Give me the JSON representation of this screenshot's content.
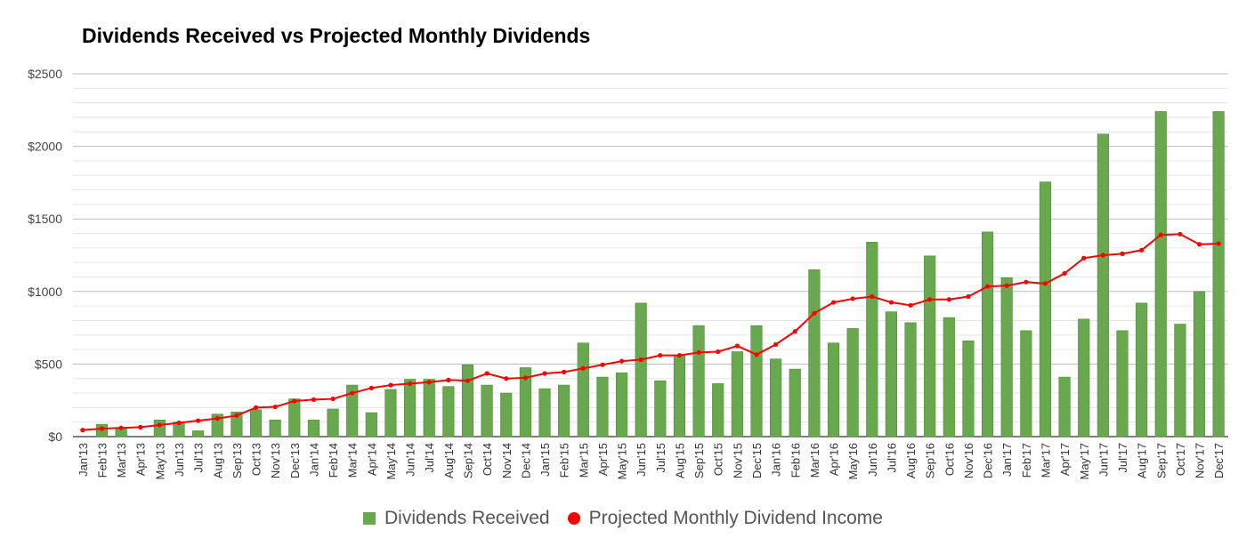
{
  "chart_data": {
    "type": "bar",
    "title": "Dividends Received vs Projected Monthly Dividends",
    "xlabel": "",
    "ylabel": "",
    "ylim": [
      0,
      2500
    ],
    "yticks": [
      0,
      500,
      1000,
      1500,
      2000,
      2500
    ],
    "ytick_labels": [
      "$0",
      "$500",
      "$1000",
      "$1500",
      "$2000",
      "$2500"
    ],
    "grid": true,
    "legend_position": "bottom",
    "categories": [
      "Jan'13",
      "Feb'13",
      "Mar'13",
      "Apr'13",
      "May'13",
      "Jun'13",
      "Jul'13",
      "Aug'13",
      "Sep'13",
      "Oct'13",
      "Nov'13",
      "Dec'13",
      "Jan'14",
      "Feb'14",
      "Mar'14",
      "Apr'14",
      "May'14",
      "Jun'14",
      "Jul'14",
      "Aug'14",
      "Sep'14",
      "Oct'14",
      "Nov'14",
      "Dec'14",
      "Jan'15",
      "Feb'15",
      "Mar'15",
      "Apr'15",
      "May'15",
      "Jun'15",
      "Jul'15",
      "Aug'15",
      "Sep'15",
      "Oct'15",
      "Nov'15",
      "Dec'15",
      "Jan'16",
      "Feb'16",
      "Mar'16",
      "Apr'16",
      "May'16",
      "Jun'16",
      "Jul'16",
      "Aug'16",
      "Sep'16",
      "Oct'16",
      "Nov'16",
      "Dec'16",
      "Jan'17",
      "Feb'17",
      "Mar'17",
      "Apr'17",
      "May'17",
      "Jun'17",
      "Jul'17",
      "Aug'17",
      "Sep'17",
      "Oct'17",
      "Nov'17",
      "Dec'17"
    ],
    "series": [
      {
        "name": "Dividends Received",
        "type": "bar",
        "color": "#6aa84f",
        "values": [
          0,
          85,
          55,
          0,
          115,
          100,
          40,
          155,
          170,
          185,
          115,
          260,
          115,
          190,
          355,
          165,
          325,
          395,
          395,
          345,
          495,
          355,
          300,
          475,
          330,
          355,
          645,
          410,
          440,
          920,
          385,
          560,
          765,
          365,
          585,
          765,
          535,
          465,
          1150,
          645,
          745,
          1340,
          860,
          785,
          1245,
          820,
          660,
          1410,
          1095,
          730,
          1755,
          410,
          810,
          2085,
          730,
          920,
          2240,
          775,
          1000,
          2240
        ]
      },
      {
        "name": "Projected Monthly Dividend Income",
        "type": "line",
        "color": "#ff0000",
        "values": [
          45,
          55,
          60,
          65,
          80,
          95,
          110,
          125,
          145,
          200,
          205,
          245,
          255,
          260,
          300,
          335,
          355,
          365,
          375,
          390,
          385,
          435,
          400,
          405,
          435,
          445,
          470,
          495,
          520,
          530,
          560,
          560,
          580,
          585,
          625,
          565,
          635,
          725,
          850,
          925,
          950,
          965,
          925,
          905,
          945,
          945,
          965,
          1035,
          1040,
          1065,
          1055,
          1125,
          1230,
          1250,
          1260,
          1285,
          1390,
          1395,
          1325,
          1330
        ]
      }
    ]
  },
  "legend": {
    "items": [
      {
        "label": "Dividends Received",
        "color": "#6aa84f",
        "marker": "square"
      },
      {
        "label": "Projected Monthly Dividend Income",
        "color": "#ff0000",
        "marker": "circle"
      }
    ]
  }
}
